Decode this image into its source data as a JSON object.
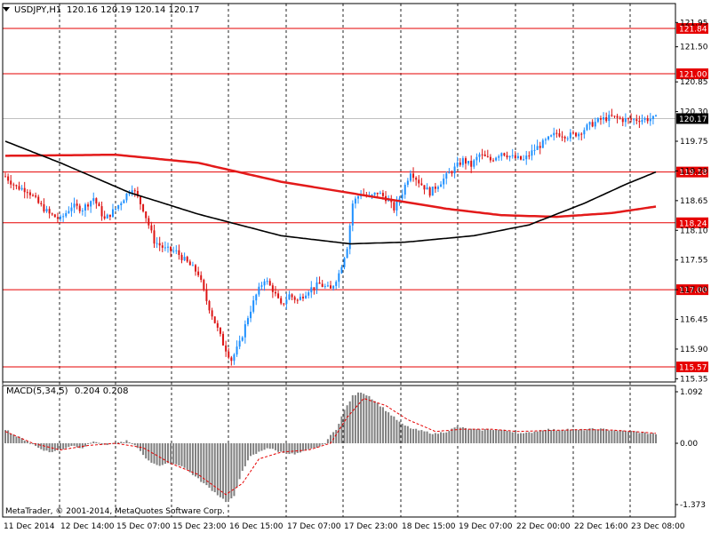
{
  "window": {
    "symbol_timeframe": "USDJPY,H1",
    "ohlc": "120.16 120.19 120.14 120.17",
    "copyright": "MetaTrader, © 2001-2014, MetaQuotes Software Corp."
  },
  "colors": {
    "bull": "#1e90ff",
    "bear": "#dc1414",
    "hline": "#e60000",
    "slow_ma": "#e31a1a",
    "fast_ma": "#000000",
    "macd_hist": "#808080",
    "macd_signal": "#e60000",
    "current_line": "#c0c0c0"
  },
  "chart_data": [
    {
      "type": "candlestick",
      "symbol": "USDJPY",
      "timeframe": "H1",
      "y_ticks": [
        "121.95",
        "121.50",
        "120.85",
        "120.30",
        "119.75",
        "119.20",
        "118.65",
        "118.10",
        "117.55",
        "117.00",
        "116.45",
        "115.90",
        "115.35"
      ],
      "x_ticks": [
        "11 Dec 2014",
        "12 Dec 14:00",
        "15 Dec 07:00",
        "15 Dec 23:00",
        "16 Dec 15:00",
        "17 Dec 07:00",
        "17 Dec 23:00",
        "18 Dec 15:00",
        "19 Dec 07:00",
        "22 Dec 00:00",
        "22 Dec 16:00",
        "23 Dec 08:00"
      ],
      "ylim": [
        115.26,
        122.23
      ],
      "current_price": "120.17",
      "horizontal_levels": [
        "121.84",
        "121.00",
        "119.18",
        "118.24",
        "117.00",
        "115.57"
      ],
      "price_path": [
        [
          0,
          119.1
        ],
        [
          4,
          118.9
        ],
        [
          8,
          118.85
        ],
        [
          12,
          118.6
        ],
        [
          16,
          118.4
        ],
        [
          20,
          118.3
        ],
        [
          24,
          118.55
        ],
        [
          28,
          118.5
        ],
        [
          32,
          118.7
        ],
        [
          36,
          118.3
        ],
        [
          40,
          118.5
        ],
        [
          46,
          118.9
        ],
        [
          50,
          118.5
        ],
        [
          54,
          117.9
        ],
        [
          58,
          117.75
        ],
        [
          62,
          117.7
        ],
        [
          66,
          117.5
        ],
        [
          70,
          117.3
        ],
        [
          73,
          116.8
        ],
        [
          76,
          116.4
        ],
        [
          79,
          116.0
        ],
        [
          82,
          115.7
        ],
        [
          85,
          116.0
        ],
        [
          88,
          116.5
        ],
        [
          91,
          116.9
        ],
        [
          94,
          117.2
        ],
        [
          97,
          117.0
        ],
        [
          100,
          116.7
        ],
        [
          103,
          116.9
        ],
        [
          106,
          116.8
        ],
        [
          110,
          117.0
        ],
        [
          114,
          117.1
        ],
        [
          118,
          117.0
        ],
        [
          121,
          117.3
        ],
        [
          124,
          117.8
        ],
        [
          126,
          118.6
        ],
        [
          129,
          118.8
        ],
        [
          132,
          118.7
        ],
        [
          135,
          118.8
        ],
        [
          138,
          118.7
        ],
        [
          141,
          118.5
        ],
        [
          144,
          118.8
        ],
        [
          147,
          119.2
        ],
        [
          150,
          119.0
        ],
        [
          154,
          118.8
        ],
        [
          158,
          119.0
        ],
        [
          162,
          119.2
        ],
        [
          166,
          119.4
        ],
        [
          169,
          119.3
        ],
        [
          172,
          119.5
        ],
        [
          176,
          119.4
        ],
        [
          180,
          119.55
        ],
        [
          184,
          119.45
        ],
        [
          188,
          119.4
        ],
        [
          192,
          119.6
        ],
        [
          196,
          119.75
        ],
        [
          200,
          119.9
        ],
        [
          204,
          119.85
        ],
        [
          208,
          119.9
        ],
        [
          212,
          120.05
        ],
        [
          216,
          120.15
        ],
        [
          220,
          120.2
        ],
        [
          224,
          120.15
        ],
        [
          228,
          120.15
        ],
        [
          232,
          120.16
        ],
        [
          236,
          120.17
        ]
      ],
      "series": [
        {
          "name": "MA slow",
          "values": [
            [
              0,
              119.48
            ],
            [
              40,
              119.5
            ],
            [
              70,
              119.35
            ],
            [
              100,
              119.0
            ],
            [
              130,
              118.75
            ],
            [
              160,
              118.5
            ],
            [
              180,
              118.38
            ],
            [
              200,
              118.35
            ],
            [
              220,
              118.42
            ],
            [
              236,
              118.54
            ]
          ]
        },
        {
          "name": "MA fast",
          "values": [
            [
              0,
              119.75
            ],
            [
              20,
              119.35
            ],
            [
              45,
              118.8
            ],
            [
              70,
              118.4
            ],
            [
              100,
              118.0
            ],
            [
              125,
              117.85
            ],
            [
              145,
              117.88
            ],
            [
              170,
              118.0
            ],
            [
              190,
              118.2
            ],
            [
              210,
              118.6
            ],
            [
              225,
              118.95
            ],
            [
              236,
              119.18
            ]
          ]
        }
      ]
    },
    {
      "type": "bar",
      "indicator": "MACD(5,34,5)",
      "values_text": "0.204 0.208",
      "y_ticks": [
        "1.092",
        "0.00",
        "-1.373"
      ],
      "ylim": [
        -1.44,
        1.13
      ],
      "histogram": [
        [
          0,
          0.3
        ],
        [
          4,
          0.15
        ],
        [
          8,
          0.05
        ],
        [
          12,
          -0.1
        ],
        [
          16,
          -0.2
        ],
        [
          20,
          -0.15
        ],
        [
          24,
          -0.05
        ],
        [
          28,
          -0.1
        ],
        [
          32,
          0.05
        ],
        [
          36,
          -0.05
        ],
        [
          40,
          0.0
        ],
        [
          44,
          0.05
        ],
        [
          48,
          -0.1
        ],
        [
          52,
          -0.4
        ],
        [
          56,
          -0.5
        ],
        [
          60,
          -0.45
        ],
        [
          64,
          -0.5
        ],
        [
          68,
          -0.7
        ],
        [
          72,
          -0.9
        ],
        [
          76,
          -1.1
        ],
        [
          80,
          -1.3
        ],
        [
          83,
          -1.2
        ],
        [
          86,
          -0.6
        ],
        [
          89,
          -0.3
        ],
        [
          92,
          -0.2
        ],
        [
          95,
          -0.1
        ],
        [
          100,
          -0.2
        ],
        [
          105,
          -0.25
        ],
        [
          110,
          -0.15
        ],
        [
          115,
          -0.05
        ],
        [
          120,
          0.3
        ],
        [
          123,
          0.7
        ],
        [
          126,
          1.0
        ],
        [
          129,
          1.09
        ],
        [
          132,
          1.0
        ],
        [
          136,
          0.8
        ],
        [
          140,
          0.6
        ],
        [
          144,
          0.4
        ],
        [
          148,
          0.3
        ],
        [
          152,
          0.25
        ],
        [
          156,
          0.2
        ],
        [
          160,
          0.25
        ],
        [
          164,
          0.35
        ],
        [
          168,
          0.3
        ],
        [
          172,
          0.28
        ],
        [
          176,
          0.3
        ],
        [
          180,
          0.28
        ],
        [
          184,
          0.25
        ],
        [
          188,
          0.2
        ],
        [
          192,
          0.25
        ],
        [
          196,
          0.3
        ],
        [
          200,
          0.28
        ],
        [
          204,
          0.3
        ],
        [
          208,
          0.28
        ],
        [
          212,
          0.3
        ],
        [
          216,
          0.3
        ],
        [
          220,
          0.28
        ],
        [
          224,
          0.26
        ],
        [
          228,
          0.25
        ],
        [
          232,
          0.22
        ],
        [
          236,
          0.2
        ]
      ],
      "signal": [
        [
          0,
          0.25
        ],
        [
          10,
          0.0
        ],
        [
          20,
          -0.15
        ],
        [
          30,
          -0.05
        ],
        [
          40,
          0.0
        ],
        [
          50,
          -0.1
        ],
        [
          60,
          -0.45
        ],
        [
          70,
          -0.7
        ],
        [
          80,
          -1.15
        ],
        [
          86,
          -0.9
        ],
        [
          92,
          -0.35
        ],
        [
          100,
          -0.2
        ],
        [
          110,
          -0.15
        ],
        [
          118,
          0.0
        ],
        [
          124,
          0.55
        ],
        [
          130,
          0.95
        ],
        [
          138,
          0.8
        ],
        [
          146,
          0.5
        ],
        [
          156,
          0.25
        ],
        [
          166,
          0.3
        ],
        [
          176,
          0.3
        ],
        [
          186,
          0.25
        ],
        [
          196,
          0.27
        ],
        [
          210,
          0.29
        ],
        [
          220,
          0.28
        ],
        [
          230,
          0.24
        ],
        [
          236,
          0.21
        ]
      ]
    }
  ]
}
